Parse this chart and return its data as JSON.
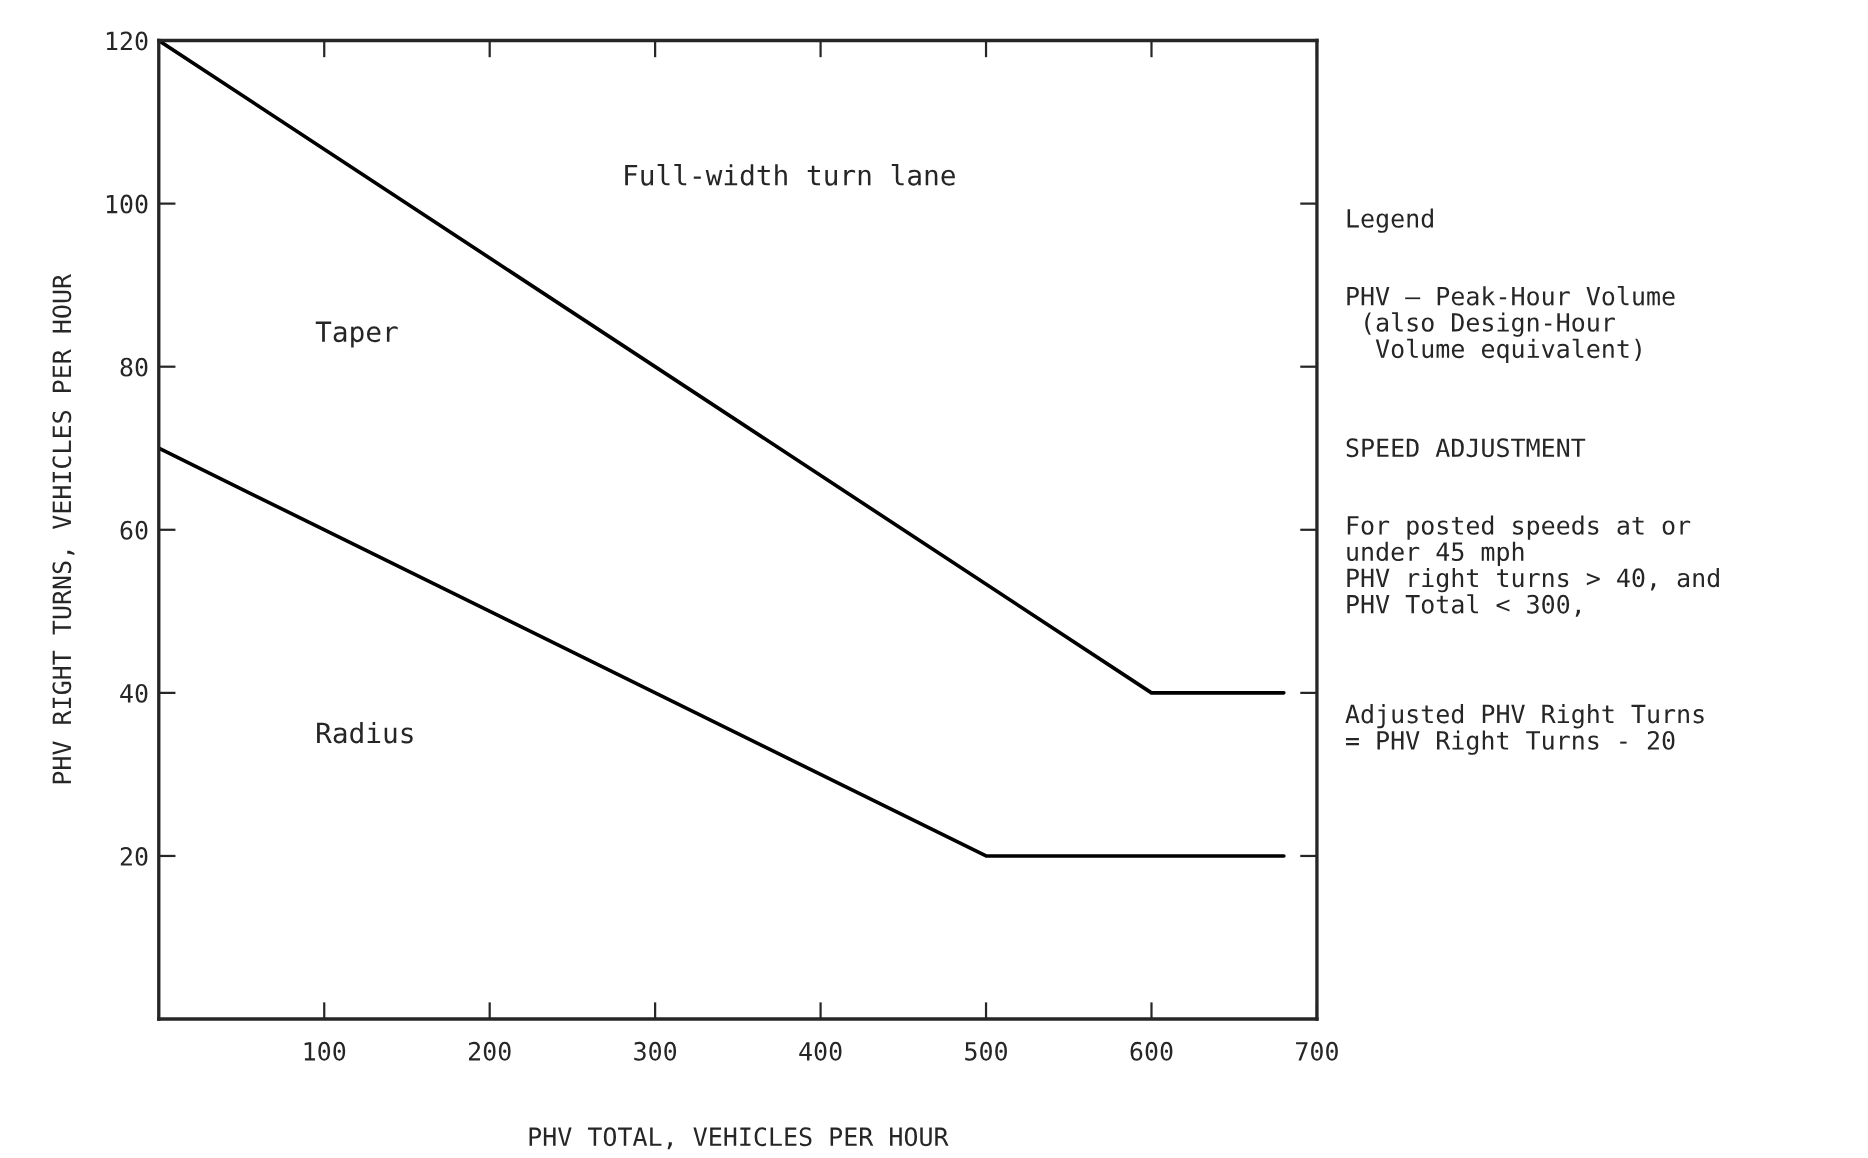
{
  "chart_data": {
    "type": "line",
    "xlabel": "PHV TOTAL, VEHICLES PER HOUR",
    "ylabel": "PHV RIGHT TURNS, VEHICLES PER HOUR",
    "series": [
      {
        "color": "#000000",
        "x": [
          0,
          600,
          680
        ],
        "values": [
          120,
          40,
          40
        ]
      },
      {
        "color": "#000000",
        "x": [
          0,
          500,
          680
        ],
        "values": [
          70,
          20,
          20
        ]
      }
    ],
    "xlim": [
      0,
      700
    ],
    "xticks": [
      100,
      200,
      300,
      400,
      500,
      600,
      700
    ],
    "ylim": [
      0,
      120
    ],
    "yticks": [
      20,
      40,
      60,
      80,
      100,
      120
    ],
    "grid": false,
    "marker": "none",
    "line_style": "solid",
    "annotations": [
      "Full-width turn lane",
      "Taper",
      "Radius",
      "Legend",
      "PHV — Peak-Hour Volume\n (also Design-Hour\n  Volume equivalent)",
      "SPEED ADJUSTMENT",
      "For posted speeds at or\nunder 45 mph\nPHV right turns > 40, and\nPHV Total < 300,",
      "Adjusted PHV Right Turns\n= PHV Right Turns - 20"
    ]
  }
}
